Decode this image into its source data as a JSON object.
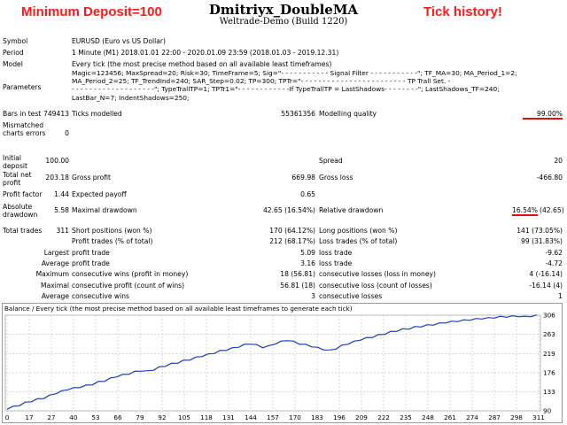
{
  "promo": {
    "left": "Minimum Deposit=100",
    "right": "Tick history!"
  },
  "title": "Dmitriyx_DoubleMA",
  "subtitle": "Weltrade-Demo (Build 1220)",
  "info": {
    "symbol_label": "Symbol",
    "symbol": "EURUSD (Euro vs US Dollar)",
    "period_label": "Period",
    "period": "1 Minute (M1) 2018.01.01 22:00 - 2020.01.09 23:59 (2018.01.03 - 2019.12.31)",
    "model_label": "Model",
    "model": "Every tick (the most precise method based on all available least timeframes)",
    "params_label": "Parameters",
    "params": [
      "Magic=123456; MaxSpread=20; Risk=30; TimeFrame=5; Sig=\"- - - - - - - - - - - Signal Filter - - - - - - - - - - -\"; TF_MA=30; MA_Period_1=2;",
      "MA_Period_2=25; TF_TrendInd=240; SAR_Step=0.02; TP=300; TPTr=\"- - - - - - - - - - - - - - - - - - - - - - - - TP Trall Set. -",
      "- - - - - - - - - - - - - - - - - - -\"; TypeTrallTP=1; TPTr1=\"- - - - - - - - - - - -If TypeTrallTP = LastShadows- - - - - - - -\"; LastShadows_TF=240;",
      "LastBar_N=7; IndentShadows=250;"
    ]
  },
  "stats": {
    "bars_label": "Bars in test",
    "bars": "749413",
    "ticks_label": "Ticks modelled",
    "ticks": "55361356",
    "quality_label": "Modelling quality",
    "quality": "99.00%",
    "mismatched_label": "Mismatched charts errors",
    "mismatched": "0",
    "deposit_label": "Initial deposit",
    "deposit": "100.00",
    "spread_label": "Spread",
    "spread": "20",
    "netprofit_label": "Total net profit",
    "netprofit": "203.18",
    "grossprofit_label": "Gross profit",
    "grossprofit": "669.98",
    "grossloss_label": "Gross loss",
    "grossloss": "-466.80",
    "pf_label": "Profit factor",
    "pf": "1.44",
    "expected_label": "Expected payoff",
    "expected": "0.65",
    "absdd_label": "Absolute drawdown",
    "absdd": "5.58",
    "maxdd_label": "Maximal drawdown",
    "maxdd": "42.65 (16.54%)",
    "reldd_label": "Relative drawdown",
    "reldd_pct": "16.54%",
    "reldd_val": "(42.65)",
    "trades_label": "Total trades",
    "trades": "311",
    "short_label": "Short positions (won %)",
    "short": "170 (64.12%)",
    "long_label": "Long positions (won %)",
    "long": "141 (73.05%)",
    "ptrades_label": "Profit trades (% of total)",
    "ptrades": "212 (68.17%)",
    "ltrades_label": "Loss trades (% of total)",
    "ltrades": "99 (31.83%)",
    "largest_label": "Largest",
    "avg_label": "Average",
    "maximum_label": "Maximum",
    "maximal_label": "Maximal",
    "average2_label": "Average",
    "pt_label": "profit trade",
    "largest_pt": "5.09",
    "lt_label": "loss trade",
    "largest_lt": "-9.62",
    "avg_pt": "3.16",
    "avg_lt": "-4.72",
    "cw_label": "consecutive wins (profit in money)",
    "cw": "18 (56.81)",
    "cl_label": "consecutive losses (loss in money)",
    "cl": "4 (-16.14)",
    "cp_label": "consecutive profit (count of wins)",
    "cp": "56.81 (18)",
    "cls_label": "consecutive loss (count of losses)",
    "cls": "-16.14 (4)",
    "acw_label": "consecutive wins",
    "acw": "3",
    "acl_label": "consecutive losses",
    "acl": "1"
  },
  "chart_data": {
    "type": "line",
    "title": "Balance / Every tick (the most precise method based on all available least timeframes to generate each tick)",
    "xlabel": "",
    "ylabel": "",
    "x_ticks": [
      "0",
      "17",
      "27",
      "40",
      "53",
      "66",
      "79",
      "92",
      "105",
      "118",
      "131",
      "144",
      "157",
      "170",
      "183",
      "196",
      "209",
      "222",
      "235",
      "248",
      "261",
      "274",
      "287",
      "298",
      "311"
    ],
    "y_ticks": [
      "306",
      "263",
      "219",
      "176",
      "133",
      "90"
    ],
    "ylim": [
      90,
      306
    ],
    "series": [
      {
        "name": "Balance",
        "color": "#1a3fbf",
        "values": [
          95,
          99,
          103,
          108,
          112,
          116,
          119,
          124,
          130,
          134,
          139,
          141,
          144,
          147,
          150,
          155,
          158,
          163,
          168,
          171,
          174,
          178,
          181,
          179,
          183,
          188,
          192,
          196,
          199,
          203,
          206,
          210,
          214,
          217,
          221,
          225,
          228,
          231,
          235,
          239,
          242,
          238,
          234,
          236,
          242,
          246,
          250,
          246,
          242,
          239,
          236,
          232,
          229,
          226,
          231,
          237,
          242,
          246,
          251,
          254,
          257,
          261,
          264,
          268,
          271,
          274,
          276,
          279,
          281,
          283,
          285,
          287,
          290,
          291,
          293,
          294,
          296,
          297,
          299,
          299,
          301,
          302,
          303,
          303,
          304,
          302,
          304,
          305
        ]
      }
    ]
  }
}
